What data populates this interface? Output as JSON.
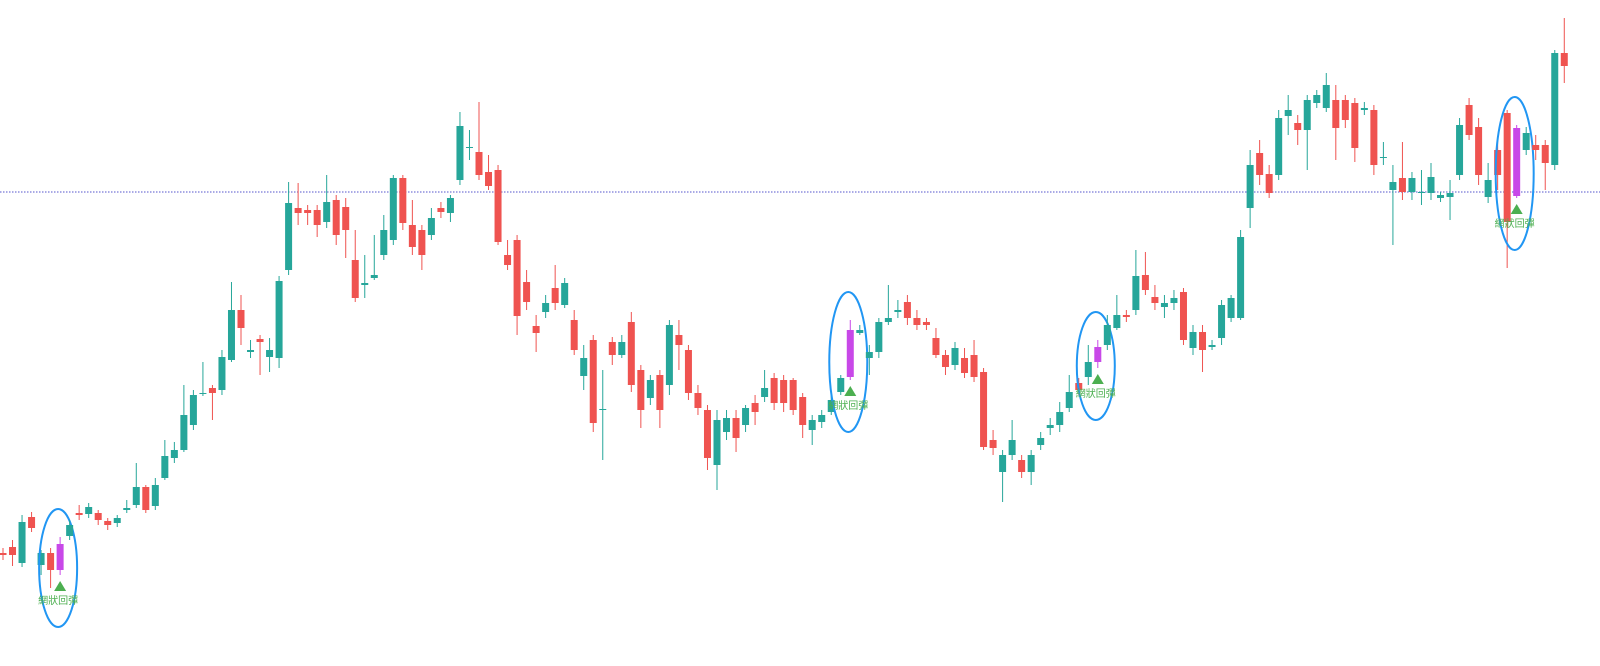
{
  "chart_data": {
    "type": "candlestick",
    "up_color": "#26a69a",
    "down_color": "#ef5350",
    "highlight_color": "#c848e8",
    "signal_color": "#4caf50",
    "ellipse_color": "#2196f3",
    "reference_color": "#5555cc",
    "ylim": [
      0,
      666
    ],
    "reference_line": 474,
    "open": [
      113,
      119,
      103,
      149,
      101,
      113,
      96,
      130,
      153,
      152,
      153,
      145,
      143,
      156,
      161,
      179,
      160,
      188,
      208,
      216,
      241,
      272,
      278,
      276,
      306,
      356,
      314,
      327,
      309,
      308,
      396,
      458,
      456,
      456,
      444,
      466,
      459,
      406,
      381,
      388,
      411,
      426,
      488,
      441,
      436,
      431,
      458,
      453,
      486,
      518,
      514,
      494,
      496,
      411,
      426,
      384,
      340,
      354,
      378,
      361,
      346,
      290,
      326,
      256,
      324,
      311,
      344,
      296,
      268,
      291,
      281,
      331,
      316,
      273,
      256,
      201,
      234,
      248,
      241,
      263,
      269,
      288,
      286,
      286,
      269,
      236,
      244,
      254,
      274,
      289,
      333,
      308,
      314,
      344,
      354,
      364,
      348,
      344,
      328,
      311,
      301,
      308,
      311,
      294,
      226,
      194,
      211,
      206,
      194,
      221,
      238,
      241,
      258,
      283,
      289,
      304,
      321,
      338,
      351,
      356,
      391,
      369,
      359,
      363,
      374,
      318,
      334,
      319,
      328,
      348,
      348,
      458,
      513,
      492,
      491,
      550,
      543,
      536,
      563,
      558,
      566,
      566,
      563,
      556,
      556,
      508,
      476,
      488,
      474,
      473,
      473,
      468,
      469,
      491,
      561,
      539,
      469,
      516,
      553,
      470,
      516,
      521,
      521,
      501,
      613
    ],
    "high": [
      118,
      126,
      151,
      154,
      116,
      118,
      129,
      146,
      161,
      163,
      156,
      148,
      151,
      166,
      203,
      181,
      188,
      226,
      224,
      281,
      276,
      304,
      281,
      316,
      384,
      371,
      326,
      331,
      328,
      390,
      484,
      483,
      461,
      461,
      491,
      471,
      468,
      436,
      411,
      431,
      451,
      491,
      491,
      466,
      441,
      458,
      464,
      471,
      554,
      536,
      564,
      511,
      501,
      426,
      431,
      396,
      351,
      371,
      401,
      388,
      356,
      321,
      331,
      296,
      329,
      331,
      354,
      301,
      291,
      296,
      346,
      346,
      321,
      281,
      261,
      256,
      256,
      256,
      261,
      271,
      296,
      293,
      291,
      288,
      273,
      251,
      256,
      271,
      291,
      346,
      341,
      321,
      348,
      381,
      366,
      371,
      356,
      348,
      338,
      316,
      324,
      318,
      326,
      298,
      236,
      216,
      246,
      211,
      216,
      234,
      248,
      264,
      291,
      288,
      321,
      326,
      351,
      371,
      356,
      416,
      414,
      381,
      371,
      376,
      378,
      341,
      341,
      326,
      366,
      371,
      436,
      516,
      526,
      501,
      556,
      571,
      551,
      571,
      576,
      593,
      581,
      571,
      568,
      564,
      561,
      524,
      501,
      524,
      494,
      496,
      503,
      474,
      486,
      548,
      568,
      548,
      503,
      526,
      556,
      541,
      539,
      531,
      526,
      616,
      648
    ],
    "low": [
      106,
      100,
      99,
      134,
      91,
      78,
      91,
      126,
      146,
      148,
      141,
      136,
      139,
      153,
      158,
      153,
      156,
      186,
      203,
      214,
      236,
      270,
      246,
      271,
      304,
      321,
      308,
      291,
      294,
      298,
      391,
      441,
      441,
      429,
      438,
      421,
      408,
      364,
      368,
      386,
      406,
      421,
      436,
      411,
      396,
      426,
      448,
      444,
      481,
      506,
      486,
      476,
      421,
      396,
      331,
      356,
      314,
      348,
      356,
      358,
      311,
      276,
      234,
      206,
      301,
      308,
      274,
      238,
      261,
      238,
      271,
      296,
      266,
      251,
      196,
      176,
      226,
      214,
      234,
      241,
      264,
      256,
      254,
      251,
      228,
      221,
      238,
      251,
      271,
      286,
      331,
      291,
      308,
      341,
      348,
      341,
      336,
      336,
      308,
      291,
      296,
      288,
      284,
      216,
      211,
      164,
      206,
      188,
      181,
      216,
      231,
      234,
      254,
      271,
      281,
      298,
      316,
      336,
      344,
      351,
      371,
      356,
      348,
      356,
      321,
      311,
      294,
      316,
      321,
      344,
      346,
      438,
      481,
      468,
      486,
      531,
      521,
      496,
      558,
      554,
      506,
      538,
      504,
      551,
      491,
      501,
      421,
      466,
      466,
      461,
      466,
      464,
      446,
      486,
      526,
      481,
      463,
      476,
      398,
      468,
      511,
      506,
      476,
      496,
      583
    ],
    "close": [
      111,
      111,
      144,
      138,
      113,
      96,
      122,
      141,
      151,
      159,
      146,
      141,
      148,
      158,
      179,
      156,
      181,
      210,
      216,
      251,
      271,
      273,
      273,
      309,
      356,
      338,
      316,
      324,
      316,
      385,
      463,
      453,
      453,
      441,
      464,
      431,
      436,
      368,
      383,
      391,
      436,
      488,
      443,
      419,
      411,
      448,
      454,
      468,
      540,
      519,
      491,
      480,
      424,
      401,
      350,
      364,
      333,
      363,
      363,
      383,
      316,
      308,
      243,
      257,
      311,
      324,
      281,
      256,
      286,
      256,
      341,
      321,
      273,
      258,
      208,
      246,
      248,
      228,
      258,
      254,
      278,
      263,
      263,
      256,
      241,
      246,
      251,
      266,
      288,
      336,
      336,
      314,
      344,
      348,
      356,
      348,
      341,
      341,
      311,
      299,
      318,
      293,
      289,
      219,
      218,
      211,
      226,
      194,
      211,
      228,
      241,
      254,
      274,
      276,
      304,
      319,
      341,
      351,
      349,
      390,
      376,
      363,
      363,
      368,
      326,
      334,
      316,
      321,
      361,
      368,
      429,
      501,
      491,
      473,
      548,
      556,
      536,
      566,
      571,
      581,
      538,
      546,
      518,
      558,
      501,
      509,
      484,
      474,
      488,
      474,
      489,
      471,
      473,
      541,
      531,
      491,
      486,
      491,
      444,
      538,
      533,
      516,
      503,
      613,
      600
    ],
    "signal_labels": [
      null,
      null,
      null,
      null,
      null,
      null,
      "網狀回彈",
      null,
      null,
      null,
      null,
      null,
      null,
      null,
      null,
      null,
      null,
      null,
      null,
      null,
      null,
      null,
      null,
      null,
      null,
      null,
      null,
      null,
      null,
      null,
      null,
      null,
      null,
      null,
      null,
      null,
      null,
      null,
      null,
      null,
      null,
      null,
      null,
      null,
      null,
      null,
      null,
      null,
      null,
      null,
      null,
      null,
      null,
      null,
      null,
      null,
      null,
      null,
      null,
      null,
      null,
      null,
      null,
      null,
      null,
      null,
      null,
      null,
      null,
      null,
      null,
      null,
      null,
      null,
      null,
      null,
      null,
      null,
      null,
      null,
      null,
      null,
      null,
      null,
      null,
      null,
      null,
      null,
      null,
      "網狀回彈",
      null,
      null,
      null,
      null,
      null,
      null,
      null,
      null,
      null,
      null,
      null,
      null,
      null,
      null,
      null,
      null,
      null,
      null,
      null,
      null,
      null,
      null,
      null,
      null,
      null,
      "網狀回彈",
      null,
      null,
      null,
      null,
      null,
      null,
      null,
      null,
      null,
      null,
      null,
      null,
      null,
      null,
      null,
      null,
      null,
      null,
      null,
      null,
      null,
      null,
      null,
      null,
      null,
      null,
      null,
      null,
      null,
      null,
      null,
      null,
      null,
      null,
      null,
      null,
      null,
      null,
      null,
      null,
      null,
      null,
      null,
      "網狀回彈",
      null,
      null,
      null,
      null,
      null
    ]
  }
}
